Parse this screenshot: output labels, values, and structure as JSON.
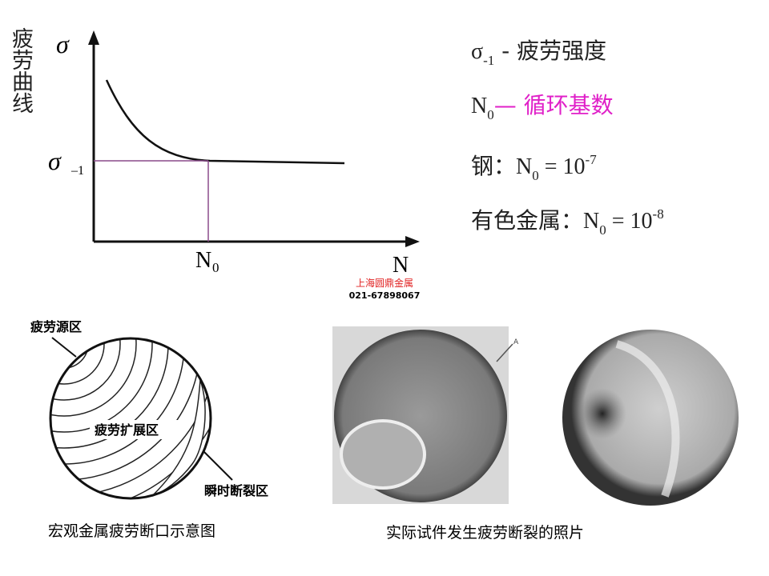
{
  "curve": {
    "y_axis_title": "疲劳曲线",
    "y_symbol": "σ",
    "limit_symbol": "σ",
    "limit_sub": "–1",
    "n0_base": "N",
    "n0_sub": "0",
    "x_symbol": "N"
  },
  "legend": [
    [
      {
        "text": "σ",
        "style": "serif"
      },
      {
        "text": "-1",
        "style": "sub"
      },
      {
        "text": " - 疲劳强度",
        "style": "normal"
      }
    ],
    [
      {
        "text": "N",
        "style": "serif"
      },
      {
        "text": "0",
        "style": "sub"
      },
      {
        "text": "— 循环基数",
        "style": "magenta"
      }
    ],
    [
      {
        "text": "钢：",
        "style": "normal"
      },
      {
        "text": "N",
        "style": "serif"
      },
      {
        "text": "0",
        "style": "sub"
      },
      {
        "text": " = 10",
        "style": "serif"
      },
      {
        "text": "-7",
        "style": "sup"
      }
    ],
    [
      {
        "text": "有色金属：",
        "style": "normal"
      },
      {
        "text": "N",
        "style": "serif"
      },
      {
        "text": "0",
        "style": "sub"
      },
      {
        "text": " = 10",
        "style": "serif"
      },
      {
        "text": "-8",
        "style": "sup"
      }
    ]
  ],
  "watermark": {
    "company": "上海圆鼎金属",
    "phone": "021-67898067"
  },
  "schematic": {
    "source_zone": "疲劳源区",
    "propagation_zone": "疲劳扩展区",
    "final_zone": "瞬时断裂区",
    "caption": "宏观金属疲劳断口示意图"
  },
  "photos": {
    "marker": "A",
    "caption": "实际试件发生疲劳断裂的照片"
  }
}
